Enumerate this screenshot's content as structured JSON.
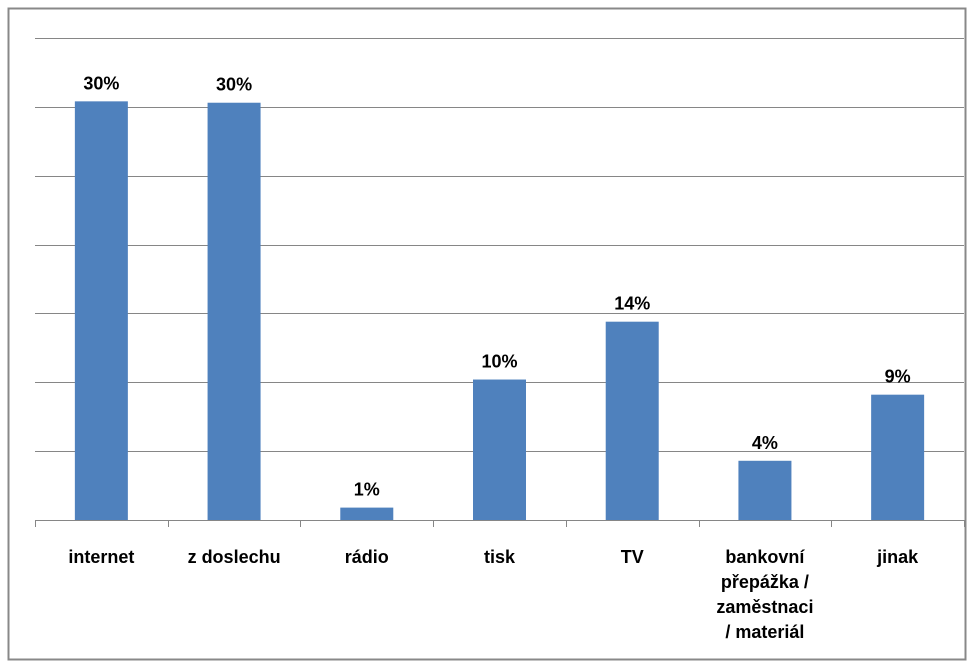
{
  "chart_data": {
    "type": "bar",
    "categories": [
      "internet",
      "z doslechu",
      "rádio",
      "tisk",
      "TV",
      "bankovní\npřepážka /\nzaměstnaci\n/ materiál",
      "jinak"
    ],
    "values": [
      30.4,
      30.3,
      0.9,
      10.2,
      14.4,
      4.3,
      9.1
    ],
    "value_labels": [
      "30%",
      "30%",
      "1%",
      "10%",
      "14%",
      "4%",
      "9%"
    ],
    "color": "#4f81bd",
    "ylim": [
      0,
      35
    ],
    "yticks": [
      0,
      5,
      10,
      15,
      20,
      25,
      30,
      35
    ],
    "grid": true
  }
}
